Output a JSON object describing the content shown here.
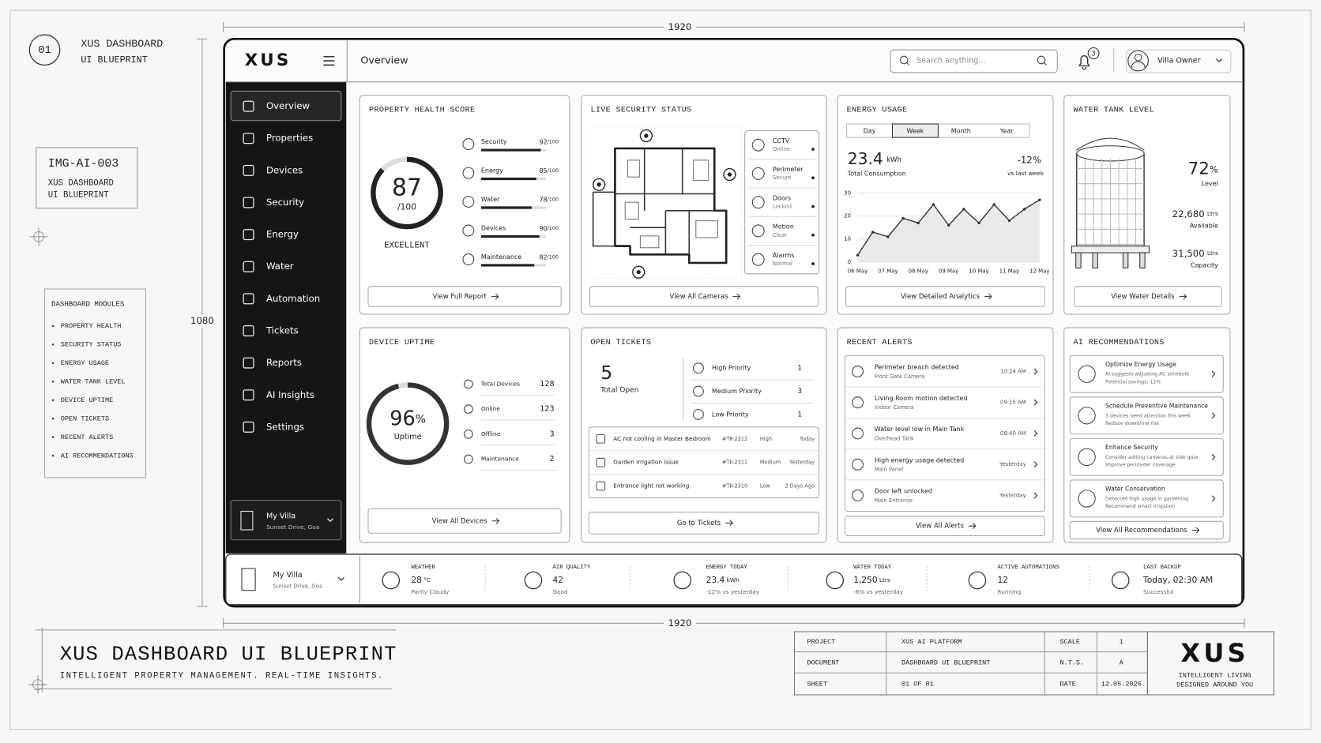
{
  "sheet": {
    "badge": "01",
    "title": "XUS DASHBOARD",
    "subtitle": "UI BLUEPRINT",
    "dim_top": 1920,
    "dim_side": 1080,
    "dim_bottom": 1920
  },
  "ref_card": {
    "id": "IMG-AI-003",
    "lines": [
      "XUS DASHBOARD",
      "UI BLUEPRINT"
    ]
  },
  "modules": {
    "title": "DASHBOARD MODULES",
    "items": [
      "PROPERTY HEALTH",
      "SECURITY STATUS",
      "ENERGY USAGE",
      "WATER TANK LEVEL",
      "DEVICE UPTIME",
      "OPEN TICKETS",
      "RECENT ALERTS",
      "AI RECOMMENDATIONS"
    ]
  },
  "header": {
    "logo": "XUS",
    "page_title": "Overview",
    "search_placeholder": "Search anything...",
    "notifications": 3,
    "user": "Villa Owner"
  },
  "sidebar": {
    "nav": [
      "Overview",
      "Properties",
      "Devices",
      "Security",
      "Energy",
      "Water",
      "Automation",
      "Tickets",
      "Reports",
      "AI Insights",
      "Settings"
    ],
    "active": 0,
    "property": {
      "name": "My Villa",
      "location": "Sunset Drive, Goa"
    }
  },
  "health": {
    "title": "PROPERTY HEALTH SCORE",
    "score": 87,
    "score_max": {
      "value": 100,
      "label": "/100"
    },
    "rating": "EXCELLENT",
    "items": [
      {
        "name": "Security",
        "value": 92,
        "max": {
          "value": 100,
          "label": "/100"
        }
      },
      {
        "name": "Energy",
        "value": 85,
        "max": {
          "value": 100,
          "label": "/100"
        }
      },
      {
        "name": "Water",
        "value": 78,
        "max": {
          "value": 100,
          "label": "/100"
        }
      },
      {
        "name": "Devices",
        "value": 90,
        "max": {
          "value": 100,
          "label": "/100"
        }
      },
      {
        "name": "Maintenance",
        "value": 82,
        "max": {
          "value": 100,
          "label": "/100"
        }
      }
    ],
    "link": "View Full Report"
  },
  "security": {
    "title": "LIVE SECURITY STATUS",
    "items": [
      {
        "name": "CCTV",
        "status": "Online"
      },
      {
        "name": "Perimeter",
        "status": "Secure"
      },
      {
        "name": "Doors",
        "status": "Locked"
      },
      {
        "name": "Motion",
        "status": "Clear"
      },
      {
        "name": "Alarms",
        "status": "Normal"
      }
    ],
    "link": "View All Cameras"
  },
  "energy": {
    "title": "ENERGY USAGE",
    "tabs": [
      "Day",
      "Week",
      "Month",
      "Year"
    ],
    "active_tab": 1,
    "total": 23.4,
    "unit": "kWh",
    "total_label": "Total Consumption",
    "change": "-12%",
    "change_label": "vs last week",
    "chart": {
      "type": "line",
      "categories": [
        "06 May",
        null,
        "07 May",
        null,
        "08 May",
        null,
        "09 May",
        null,
        "10 May",
        null,
        "11 May",
        null,
        "12 May"
      ],
      "values": [
        3,
        13,
        11,
        19,
        17,
        25,
        16,
        23,
        17,
        25,
        18,
        23,
        27
      ],
      "ylim": [
        0,
        30
      ],
      "yticks": [
        0,
        10,
        20,
        30
      ],
      "color": "#333333",
      "grid": true
    },
    "link": "View Detailed Analytics"
  },
  "water": {
    "title": "WATER TANK LEVEL",
    "level": 72,
    "level_unit": "%",
    "level_label": "Level",
    "available": "22,680",
    "available_unit": "Ltrs",
    "available_label": "Available",
    "capacity": "31,500",
    "capacity_unit": "Ltrs",
    "capacity_label": "Capacity",
    "link": "View Water Details"
  },
  "uptime": {
    "title": "DEVICE UPTIME",
    "percent": 96,
    "unit": "%",
    "label": "Uptime",
    "stats": [
      {
        "name": "Total Devices",
        "value": 128
      },
      {
        "name": "Online",
        "value": 123
      },
      {
        "name": "Offline",
        "value": 3
      },
      {
        "name": "Maintenance",
        "value": 2
      }
    ],
    "link": "View All Devices"
  },
  "tickets": {
    "title": "OPEN TICKETS",
    "total": 5,
    "total_label": "Total Open",
    "priorities": [
      {
        "name": "High Priority",
        "count": 1
      },
      {
        "name": "Medium Priority",
        "count": 3
      },
      {
        "name": "Low Priority",
        "count": 1
      }
    ],
    "list": [
      {
        "title": "AC not cooling in Master Bedroom",
        "id": "#TK-2312",
        "priority": "High",
        "date": "Today"
      },
      {
        "title": "Garden irrigation issue",
        "id": "#TK-2311",
        "priority": "Medium",
        "date": "Yesterday"
      },
      {
        "title": "Entrance light not working",
        "id": "#TK-2310",
        "priority": "Low",
        "date": "2 Days Ago"
      }
    ],
    "link": "Go to Tickets"
  },
  "alerts": {
    "title": "RECENT ALERTS",
    "items": [
      {
        "title": "Perimeter breach detected",
        "sub": "Front Gate Camera",
        "time": "10:24 AM"
      },
      {
        "title": "Living Room motion detected",
        "sub": "Indoor Camera",
        "time": "09:15 AM"
      },
      {
        "title": "Water level low in Main Tank",
        "sub": "Overhead Tank",
        "time": "08:40 AM"
      },
      {
        "title": "High energy usage detected",
        "sub": "Main Panel",
        "time": "Yesterday"
      },
      {
        "title": "Door left unlocked",
        "sub": "Main Entrance",
        "time": "Yesterday"
      }
    ],
    "link": "View All Alerts"
  },
  "ai": {
    "title": "AI RECOMMENDATIONS",
    "items": [
      {
        "title": "Optimize Energy Usage",
        "lines": [
          "AI suggests adjusting AC schedule",
          "Potential savings: 12%"
        ]
      },
      {
        "title": "Schedule Preventive Maintenance",
        "lines": [
          "3 devices need attention this week",
          "Reduce downtime risk"
        ]
      },
      {
        "title": "Enhance Security",
        "lines": [
          "Consider adding cameras at side gate",
          "Improve perimeter coverage"
        ]
      },
      {
        "title": "Water Conservation",
        "lines": [
          "Detected high usage in gardening",
          "Recommend smart irrigation"
        ]
      }
    ],
    "link": "View All Recommendations"
  },
  "status_bar": {
    "property": {
      "name": "My Villa",
      "location": "Sunset Drive, Goa"
    },
    "items": [
      {
        "label": "WEATHER",
        "value": 28,
        "unit": "°C",
        "sub": "Partly Cloudy"
      },
      {
        "label": "AIR QUALITY",
        "value": 42,
        "sub": "Good"
      },
      {
        "label": "ENERGY TODAY",
        "value": 23.4,
        "unit": "kWh",
        "sub": "-12% vs yesterday"
      },
      {
        "label": "WATER TODAY",
        "value": "1,250",
        "unit": "Ltrs",
        "sub": "-8% vs yesterday"
      },
      {
        "label": "ACTIVE AUTOMATIONS",
        "value": 12,
        "sub": "Running"
      },
      {
        "label": "LAST BACKUP",
        "value": "Today, 02:30 AM",
        "sub": "Successful"
      }
    ]
  },
  "footer": {
    "title": "XUS DASHBOARD UI BLUEPRINT",
    "tagline": "INTELLIGENT PROPERTY MANAGEMENT. REAL-TIME INSIGHTS.",
    "table": [
      [
        "PROJECT",
        "XUS AI PLATFORM",
        "SCALE",
        "1"
      ],
      [
        "DOCUMENT",
        "DASHBOARD UI BLUEPRINT",
        "N.T.S.",
        "A"
      ],
      [
        "SHEET",
        "01 OF 01",
        "DATE",
        "12.05.2026"
      ]
    ],
    "logo": "XUS",
    "logo_tagline": [
      "INTELLIGENT LIVING",
      "DESIGNED AROUND YOU"
    ]
  }
}
